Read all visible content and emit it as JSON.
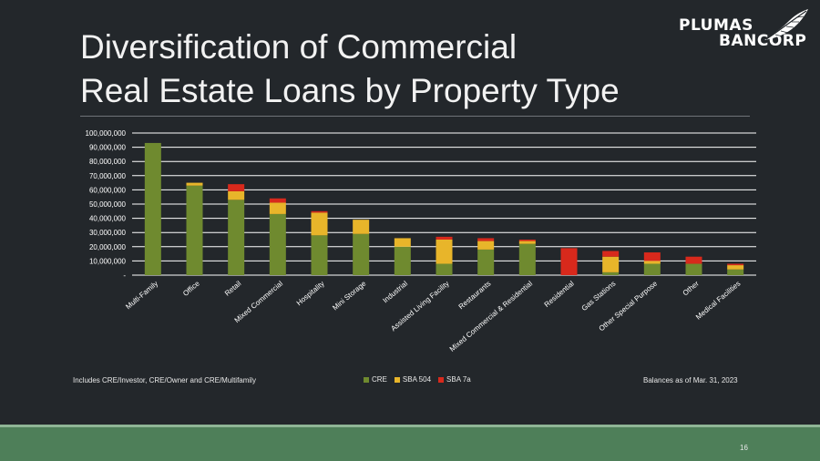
{
  "slide": {
    "title_line1": "Diversification of Commercial",
    "title_line2": "Real Estate Loans by Property Type",
    "logo_line1": "PLUMAS",
    "logo_line2": "BANCORP",
    "footnote_left": "Includes CRE/Investor, CRE/Owner and CRE/Multifamily",
    "footnote_right": "Balances as of Mar. 31, 2023",
    "page_number": "16"
  },
  "colors": {
    "background": "#23272b",
    "band": "#4e7f59",
    "cre": "#6f8a2f",
    "sba504": "#e8b52a",
    "sba7a": "#d8291c",
    "gridline": "#ffffff"
  },
  "chart_data": {
    "type": "bar",
    "stacked": true,
    "categories": [
      "Multi-Family",
      "Office",
      "Retail",
      "Mixed Commercial",
      "Hospitality",
      "Mini Storage",
      "Industrial",
      "Assisted Living Facility",
      "Restaurants",
      "Mixed Commercial & Residential",
      "Residential",
      "Gas Stations",
      "Other Special Purpose",
      "Other",
      "Medical Facilities"
    ],
    "series": [
      {
        "name": "CRE",
        "color": "#6f8a2f",
        "values": [
          93000000,
          63000000,
          53000000,
          43000000,
          28000000,
          29000000,
          20000000,
          8000000,
          18000000,
          22000000,
          0,
          2000000,
          8000000,
          8000000,
          4000000
        ]
      },
      {
        "name": "SBA 504",
        "color": "#e8b52a",
        "values": [
          0,
          2000000,
          6000000,
          8000000,
          16000000,
          10000000,
          6000000,
          17000000,
          6000000,
          2000000,
          0,
          11000000,
          2000000,
          0,
          3000000
        ]
      },
      {
        "name": "SBA 7a",
        "color": "#d8291c",
        "values": [
          0,
          0,
          5000000,
          3000000,
          1000000,
          0,
          0,
          2000000,
          2000000,
          1000000,
          19000000,
          4000000,
          6000000,
          5000000,
          1000000
        ]
      }
    ],
    "y_ticks": [
      "-",
      "10,000,000",
      "20,000,000",
      "30,000,000",
      "40,000,000",
      "50,000,000",
      "60,000,000",
      "70,000,000",
      "80,000,000",
      "90,000,000",
      "100,000,000"
    ],
    "ylim": [
      0,
      100000000
    ],
    "grid": true,
    "legend": "bottom-center"
  }
}
